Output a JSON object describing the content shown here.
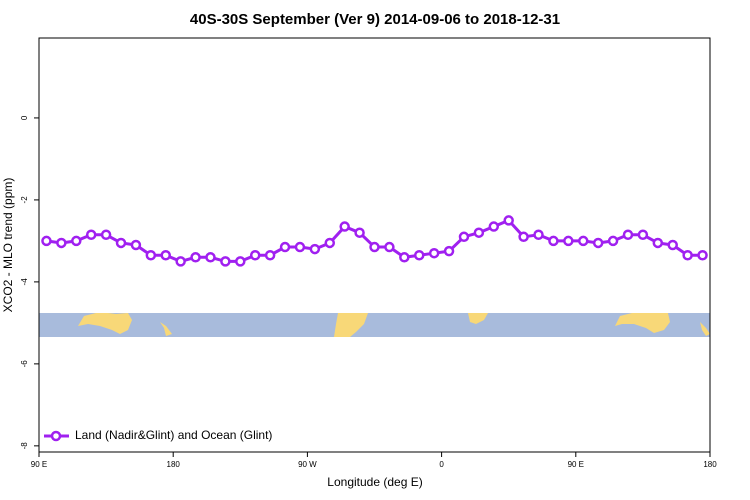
{
  "chart_data": {
    "type": "line",
    "title": "40S-30S September (Ver 9)   2014-09-06 to 2018-12-31",
    "x_label": "Longitude (deg E)",
    "y_label": "XCO2 - MLO trend (ppm)",
    "xlim": [
      90,
      540
    ],
    "ylim": [
      -8.15,
      1.95
    ],
    "xticks": [
      {
        "value": 90,
        "label": "90 E"
      },
      {
        "value": 180,
        "label": "180"
      },
      {
        "value": 270,
        "label": "90 W"
      },
      {
        "value": 360,
        "label": "0"
      },
      {
        "value": 450,
        "label": "90 E"
      },
      {
        "value": 540,
        "label": "180"
      }
    ],
    "yticks": [
      0,
      -2,
      -4,
      -6,
      -8
    ],
    "legend": "bottom-left",
    "x": [
      95,
      105,
      115,
      125,
      135,
      145,
      155,
      165,
      175,
      185,
      195,
      205,
      215,
      225,
      235,
      245,
      255,
      265,
      275,
      285,
      295,
      305,
      315,
      325,
      335,
      345,
      355,
      365,
      375,
      385,
      395,
      405,
      415,
      425,
      435,
      445,
      455,
      465,
      475,
      485,
      495,
      505,
      515,
      525,
      535
    ],
    "series": [
      {
        "name": "Land (Nadir&Glint) and Ocean (Glint)",
        "color": "#a020f0",
        "values": [
          -3.0,
          -3.05,
          -3.0,
          -2.85,
          -2.85,
          -3.05,
          -3.1,
          -3.35,
          -3.35,
          -3.5,
          -3.4,
          -3.4,
          -3.5,
          -3.5,
          -3.35,
          -3.35,
          -3.15,
          -3.15,
          -3.2,
          -3.05,
          -2.65,
          -2.8,
          -3.15,
          -3.15,
          -3.4,
          -3.35,
          -3.3,
          -3.25,
          -2.9,
          -2.8,
          -2.65,
          -2.5,
          -2.9,
          -2.85,
          -3.0,
          -3.0,
          -3.0,
          -3.05,
          -3.0,
          -2.85,
          -2.85,
          -3.05,
          -3.1,
          -3.35,
          -3.35
        ]
      }
    ]
  }
}
